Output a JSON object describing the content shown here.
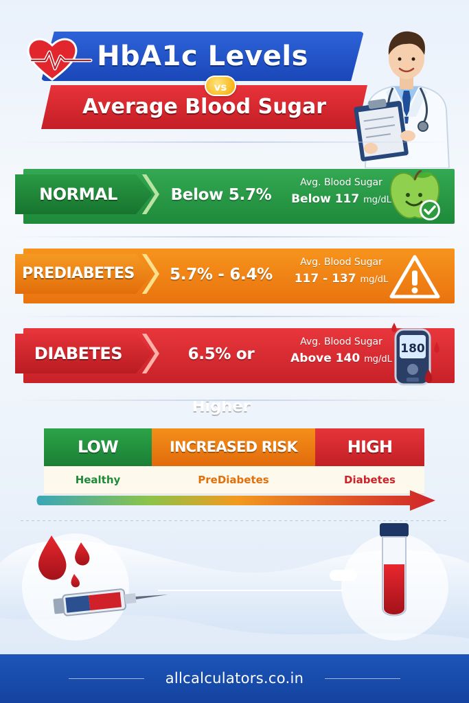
{
  "header": {
    "title_line1": "HbA1c Levels",
    "vs": "vs",
    "title_line2": "Average Blood Sugar"
  },
  "categories": [
    {
      "tag": "NORMAL",
      "range": "Below 5.7%",
      "avg_label": "Avg. Blood Sugar",
      "avg_value": "Below 117",
      "unit": "mg/dL",
      "icon": "apple-check-icon",
      "color": "#34a853"
    },
    {
      "tag": "PREDIABETES",
      "range": "5.7% - 6.4%",
      "avg_label": "Avg. Blood Sugar",
      "avg_value": "117 - 137",
      "unit": "mg/dL",
      "icon": "warning-icon",
      "color": "#f7941d"
    },
    {
      "tag": "DIABETES",
      "range": "6.5% or Higher",
      "avg_label": "Avg. Blood Sugar",
      "avg_value": "Above 140",
      "unit": "mg/dL",
      "icon": "glucose-meter-icon",
      "color": "#e8373c"
    }
  ],
  "glucose_meter_reading": "180",
  "risk_scale": [
    {
      "head": "LOW",
      "sub": "Healthy",
      "color": "#1e8a3a"
    },
    {
      "head": "INCREASED RISK",
      "sub": "PreDiabetes",
      "color": "#ec7a10"
    },
    {
      "head": "HIGH",
      "sub": "Diabetes",
      "color": "#d0242a"
    }
  ],
  "footer": {
    "site": "allcalculators.co.in"
  }
}
